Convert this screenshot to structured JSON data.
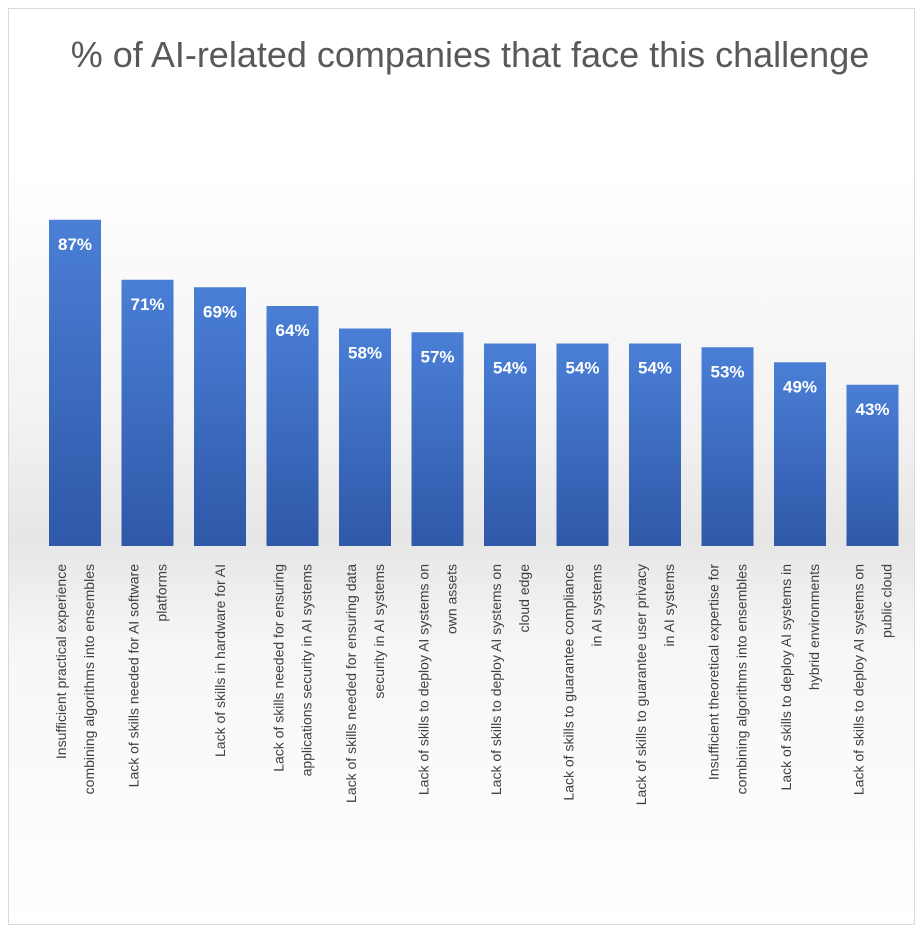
{
  "chart_data": {
    "type": "bar",
    "title": "% of AI-related companies that face this challenge",
    "categories": [
      [
        "Insufficient practical experience",
        "combining algorithms into ensembles"
      ],
      [
        "Lack of skills needed for AI software",
        "platforms"
      ],
      [
        "Lack of skills in hardware for AI"
      ],
      [
        "Lack of skills needed for ensuring",
        "applications security in AI systems"
      ],
      [
        "Lack of skills needed for ensuring data",
        "security in AI systems"
      ],
      [
        "Lack of skills to deploy AI systems on",
        "own assets"
      ],
      [
        "Lack of skills to deploy AI systems on",
        "cloud edge"
      ],
      [
        "Lack of skills to guarantee compliance",
        "in AI systems"
      ],
      [
        "Lack of skills to guarantee user privacy",
        "in AI systems"
      ],
      [
        "Insufficient theoretical expertise for",
        "combining algorithms into ensembles"
      ],
      [
        "Lack of skills to deploy AI systems in",
        "hybrid environments"
      ],
      [
        "Lack of skills to deploy AI systems on",
        "public cloud"
      ]
    ],
    "values": [
      87,
      71,
      69,
      64,
      58,
      57,
      54,
      54,
      54,
      53,
      49,
      43
    ],
    "value_labels": [
      "87%",
      "71%",
      "69%",
      "64%",
      "58%",
      "57%",
      "54%",
      "54%",
      "54%",
      "53%",
      "49%",
      "43%"
    ],
    "ylim": [
      0,
      100
    ],
    "grid": false,
    "legend": "none",
    "bar_color": "#3f6fc6",
    "bar_color_light": "#4a7fd6",
    "bar_color_dark": "#2f58a8"
  }
}
